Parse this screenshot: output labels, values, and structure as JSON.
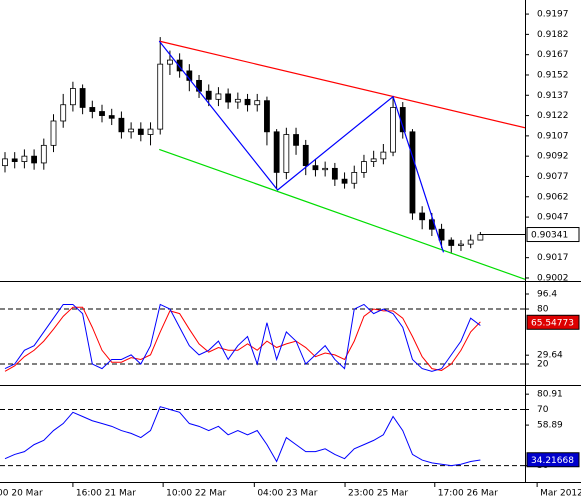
{
  "chart_data": [
    {
      "type": "candlestick",
      "xlim": [
        -0.515,
        53.6
      ],
      "ylim": [
        0.90005,
        0.92074
      ],
      "yticks": [
        0.9197,
        0.9182,
        0.9167,
        0.9152,
        0.9137,
        0.9122,
        0.9107,
        0.9092,
        0.9077,
        0.9062,
        0.9047,
        0.9017,
        0.9002
      ],
      "xticks": [
        {
          "value": -1.13,
          "label": "00 20 Mar"
        },
        {
          "value": 7.0,
          "label": "16:00 21 Mar"
        },
        {
          "value": 16.3,
          "label": "10:00 22 Mar"
        },
        {
          "value": 25.7,
          "label": "04:00 23 Mar"
        },
        {
          "value": 35.05,
          "label": "23:00 25 Mar"
        },
        {
          "value": 44.3,
          "label": "17:00 26 Mar"
        },
        {
          "value": 54.85,
          "label": "Mar 2012"
        }
      ],
      "color": "#000000",
      "open": [
        0.9085,
        0.909,
        0.9088,
        0.9092,
        0.9087,
        0.91,
        0.9118,
        0.913,
        0.9142,
        0.9128,
        0.9125,
        0.9122,
        0.912,
        0.911,
        0.9112,
        0.9108,
        0.9112,
        0.916,
        0.9163,
        0.9155,
        0.9148,
        0.914,
        0.9134,
        0.9138,
        0.9132,
        0.9134,
        0.913,
        0.9133,
        0.911,
        0.908,
        0.9108,
        0.91,
        0.9085,
        0.9082,
        0.9083,
        0.9075,
        0.9072,
        0.908,
        0.9088,
        0.909,
        0.9095,
        0.9128,
        0.911,
        0.905,
        0.9045,
        0.9038,
        0.903,
        0.9026,
        0.9027,
        0.903
      ],
      "high": [
        0.9095,
        0.9095,
        0.9097,
        0.9097,
        0.9105,
        0.9123,
        0.9138,
        0.9147,
        0.9145,
        0.9133,
        0.913,
        0.9127,
        0.9125,
        0.9117,
        0.9117,
        0.9117,
        0.918,
        0.917,
        0.9168,
        0.916,
        0.9152,
        0.9145,
        0.9143,
        0.9142,
        0.9139,
        0.9138,
        0.9138,
        0.9136,
        0.9112,
        0.9113,
        0.9113,
        0.9104,
        0.909,
        0.9088,
        0.9087,
        0.908,
        0.9085,
        0.9093,
        0.9096,
        0.9101,
        0.9136,
        0.9132,
        0.9112,
        0.9055,
        0.905,
        0.9042,
        0.9032,
        0.903,
        0.9034,
        0.9036
      ],
      "low": [
        0.908,
        0.9083,
        0.9083,
        0.9082,
        0.9082,
        0.9095,
        0.9113,
        0.9125,
        0.9123,
        0.912,
        0.9117,
        0.9115,
        0.9105,
        0.9105,
        0.9103,
        0.91,
        0.9108,
        0.9152,
        0.915,
        0.914,
        0.9135,
        0.9129,
        0.9129,
        0.9127,
        0.9127,
        0.9125,
        0.9125,
        0.91,
        0.9068,
        0.9075,
        0.9093,
        0.9078,
        0.9077,
        0.9077,
        0.907,
        0.9068,
        0.9068,
        0.9076,
        0.9084,
        0.9086,
        0.9092,
        0.9105,
        0.9045,
        0.9038,
        0.9033,
        0.9024,
        0.902,
        0.9022,
        0.9024,
        0.903
      ],
      "close": [
        0.909,
        0.9088,
        0.9092,
        0.9087,
        0.91,
        0.9118,
        0.913,
        0.9142,
        0.9128,
        0.9125,
        0.9122,
        0.912,
        0.911,
        0.9112,
        0.9108,
        0.9112,
        0.916,
        0.9163,
        0.9155,
        0.9148,
        0.914,
        0.9134,
        0.9138,
        0.9132,
        0.9134,
        0.913,
        0.9133,
        0.911,
        0.908,
        0.9108,
        0.91,
        0.9085,
        0.9082,
        0.9083,
        0.9075,
        0.9072,
        0.908,
        0.9088,
        0.909,
        0.9095,
        0.9128,
        0.911,
        0.905,
        0.9045,
        0.9038,
        0.903,
        0.9026,
        0.9027,
        0.903,
        0.9034
      ],
      "lines": [
        {
          "color": "#ff0000",
          "x": [
            15.9,
            53.6
          ],
          "y": [
            0.9177,
            0.9113
          ]
        },
        {
          "color": "#00dd00",
          "x": [
            15.9,
            53.6
          ],
          "y": [
            0.9097,
            0.9001
          ]
        },
        {
          "color": "#0000ff",
          "x": [
            15.9,
            28.1,
            40.0,
            45.2
          ],
          "y": [
            0.9177,
            0.9067,
            0.9136,
            0.9021
          ]
        }
      ],
      "last": {
        "value": 0.90341,
        "label": "0.90341"
      }
    },
    {
      "type": "line",
      "xlim": [
        -0.515,
        53.6
      ],
      "ylim": [
        -0.7,
        108.4
      ],
      "yticks": [
        96.4,
        80,
        29.64,
        20
      ],
      "levels": [
        80,
        20
      ],
      "series": [
        {
          "color": "#0000ff",
          "values": [
            15,
            20,
            35,
            40,
            55,
            70,
            85,
            85,
            75,
            20,
            15,
            25,
            25,
            30,
            20,
            40,
            85,
            80,
            60,
            40,
            30,
            35,
            45,
            25,
            40,
            50,
            20,
            65,
            25,
            55,
            45,
            20,
            30,
            40,
            25,
            15,
            80,
            85,
            75,
            80,
            75,
            60,
            25,
            15,
            12,
            15,
            30,
            45,
            70,
            62
          ]
        },
        {
          "color": "#ff0000",
          "values": [
            12,
            18,
            28,
            35,
            45,
            58,
            72,
            82,
            82,
            60,
            35,
            22,
            22,
            27,
            25,
            30,
            55,
            78,
            75,
            58,
            42,
            33,
            38,
            35,
            35,
            42,
            35,
            45,
            38,
            42,
            45,
            38,
            28,
            32,
            30,
            25,
            45,
            72,
            80,
            78,
            78,
            70,
            50,
            28,
            15,
            13,
            20,
            35,
            55,
            66
          ]
        }
      ],
      "last": {
        "value": 65.54773,
        "label": "65.54773",
        "color": "#dd0000"
      }
    },
    {
      "type": "line",
      "xlim": [
        -0.515,
        53.6
      ],
      "ylim": [
        19.8,
        85.3
      ],
      "yticks": [
        80.91,
        70,
        58.89,
        30
      ],
      "levels": [
        70,
        30
      ],
      "series": [
        {
          "color": "#0000ff",
          "values": [
            35,
            38,
            40,
            45,
            48,
            55,
            60,
            68,
            65,
            62,
            60,
            58,
            55,
            53,
            50,
            55,
            72,
            70,
            68,
            60,
            58,
            55,
            58,
            52,
            55,
            52,
            55,
            45,
            33,
            50,
            45,
            40,
            40,
            42,
            38,
            35,
            42,
            45,
            48,
            52,
            65,
            55,
            38,
            34,
            32,
            31,
            30,
            31,
            33,
            34
          ]
        }
      ],
      "last": {
        "value": 34.21668,
        "label": "34.21668",
        "color": "#0000cc"
      }
    }
  ]
}
